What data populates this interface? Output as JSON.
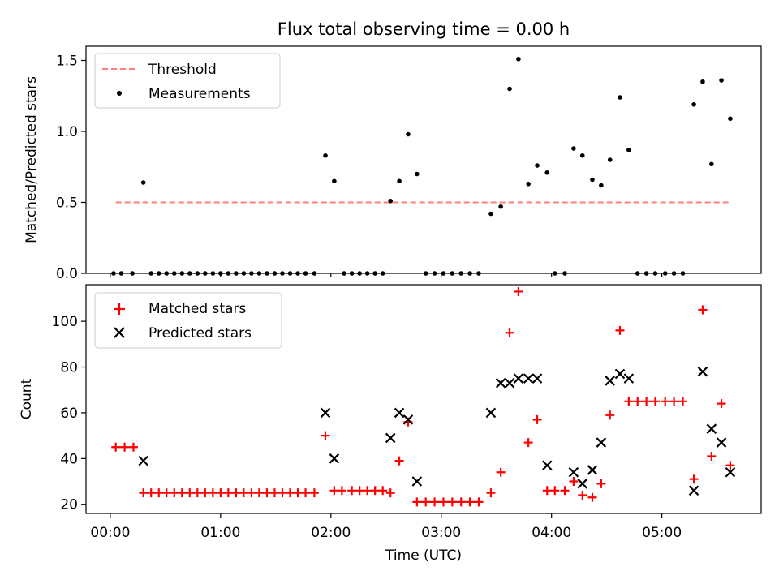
{
  "title": "Flux total observing time = 0.00 h",
  "chart_data": [
    {
      "type": "scatter",
      "panel": "top",
      "ylabel": "Matched/Predicted stars",
      "ylim": [
        0,
        1.6
      ],
      "yticks": [
        0.0,
        0.5,
        1.0,
        1.5
      ],
      "ytick_labels": [
        "0.0",
        "0.5",
        "1.0",
        "1.5"
      ],
      "xlim_hours": [
        -0.22,
        5.9
      ],
      "threshold": {
        "name": "Threshold",
        "value": 0.5,
        "x_range_hours": [
          0.05,
          5.62
        ],
        "color": "#ff7f7f"
      },
      "series": [
        {
          "name": "Measurements",
          "color": "#000000",
          "x_hours": [
            0.03,
            0.1,
            0.2,
            0.3,
            0.37,
            0.44,
            0.51,
            0.58,
            0.65,
            0.72,
            0.79,
            0.86,
            0.93,
            1.0,
            1.07,
            1.14,
            1.21,
            1.28,
            1.35,
            1.42,
            1.49,
            1.56,
            1.63,
            1.7,
            1.77,
            1.85,
            1.95,
            2.03,
            2.12,
            2.19,
            2.26,
            2.33,
            2.4,
            2.47,
            2.54,
            2.62,
            2.7,
            2.78,
            2.86,
            2.94,
            3.02,
            3.1,
            3.18,
            3.26,
            3.34,
            3.45,
            3.54,
            3.62,
            3.7,
            3.79,
            3.87,
            3.96,
            4.03,
            4.12,
            4.2,
            4.28,
            4.37,
            4.45,
            4.53,
            4.62,
            4.7,
            4.78,
            4.86,
            4.94,
            5.03,
            5.11,
            5.19,
            5.29,
            5.37,
            5.45,
            5.54,
            5.62
          ],
          "y": [
            0,
            0,
            0,
            0.64,
            0,
            0,
            0,
            0,
            0,
            0,
            0,
            0,
            0,
            0,
            0,
            0,
            0,
            0,
            0,
            0,
            0,
            0,
            0,
            0,
            0,
            0,
            0.83,
            0.65,
            0,
            0,
            0,
            0,
            0,
            0,
            0.51,
            0.65,
            0.98,
            0.7,
            0,
            0,
            0,
            0,
            0,
            0,
            0,
            0.42,
            0.47,
            1.3,
            1.51,
            0.63,
            0.76,
            0.71,
            0,
            0,
            0.88,
            0.83,
            0.66,
            0.62,
            0.8,
            1.24,
            0.87,
            0,
            0,
            0,
            0,
            0,
            0,
            1.19,
            1.35,
            0.77,
            1.36,
            1.09
          ]
        }
      ]
    },
    {
      "type": "scatter",
      "panel": "bottom",
      "xlabel": "Time (UTC)",
      "ylabel": "Count",
      "ylim": [
        16,
        116
      ],
      "yticks": [
        20,
        40,
        60,
        80,
        100
      ],
      "ytick_labels": [
        "20",
        "40",
        "60",
        "80",
        "100"
      ],
      "xlim_hours": [
        -0.22,
        5.9
      ],
      "xticks_hours": [
        0,
        1,
        2,
        3,
        4,
        5
      ],
      "xtick_labels": [
        "00:00",
        "01:00",
        "02:00",
        "03:00",
        "04:00",
        "05:00"
      ],
      "series": [
        {
          "name": "Matched stars",
          "marker": "+",
          "color": "#ff0000",
          "x_hours": [
            0.05,
            0.13,
            0.21,
            0.3,
            0.37,
            0.44,
            0.51,
            0.58,
            0.65,
            0.72,
            0.79,
            0.86,
            0.93,
            1.0,
            1.07,
            1.14,
            1.21,
            1.28,
            1.35,
            1.42,
            1.49,
            1.56,
            1.63,
            1.7,
            1.77,
            1.85,
            1.95,
            2.03,
            2.1,
            2.19,
            2.26,
            2.33,
            2.4,
            2.47,
            2.54,
            2.62,
            2.7,
            2.78,
            2.86,
            2.94,
            3.02,
            3.1,
            3.18,
            3.26,
            3.34,
            3.45,
            3.54,
            3.62,
            3.7,
            3.79,
            3.87,
            3.96,
            4.03,
            4.12,
            4.2,
            4.28,
            4.37,
            4.45,
            4.53,
            4.62,
            4.7,
            4.78,
            4.86,
            4.94,
            5.03,
            5.11,
            5.19,
            5.29,
            5.37,
            5.45,
            5.54,
            5.62
          ],
          "y": [
            45,
            45,
            45,
            25,
            25,
            25,
            25,
            25,
            25,
            25,
            25,
            25,
            25,
            25,
            25,
            25,
            25,
            25,
            25,
            25,
            25,
            25,
            25,
            25,
            25,
            25,
            50,
            26,
            26,
            26,
            26,
            26,
            26,
            26,
            25,
            39,
            56,
            21,
            21,
            21,
            21,
            21,
            21,
            21,
            21,
            25,
            34,
            95,
            113,
            47,
            57,
            26,
            26,
            26,
            30,
            24,
            23,
            29,
            59,
            96,
            65,
            65,
            65,
            65,
            65,
            65,
            65,
            31,
            105,
            41,
            64,
            37
          ]
        },
        {
          "name": "Predicted stars",
          "marker": "x",
          "color": "#000000",
          "x_hours": [
            0.3,
            1.95,
            2.03,
            2.54,
            2.62,
            2.7,
            2.78,
            3.45,
            3.54,
            3.62,
            3.7,
            3.79,
            3.87,
            3.96,
            4.2,
            4.28,
            4.37,
            4.45,
            4.53,
            4.62,
            4.7,
            5.29,
            5.37,
            5.45,
            5.54,
            5.62
          ],
          "y": [
            39,
            60,
            40,
            49,
            60,
            57,
            30,
            60,
            73,
            73,
            75,
            75,
            75,
            37,
            34,
            29,
            35,
            47,
            74,
            77,
            75,
            26,
            78,
            53,
            47,
            34
          ]
        }
      ]
    }
  ]
}
